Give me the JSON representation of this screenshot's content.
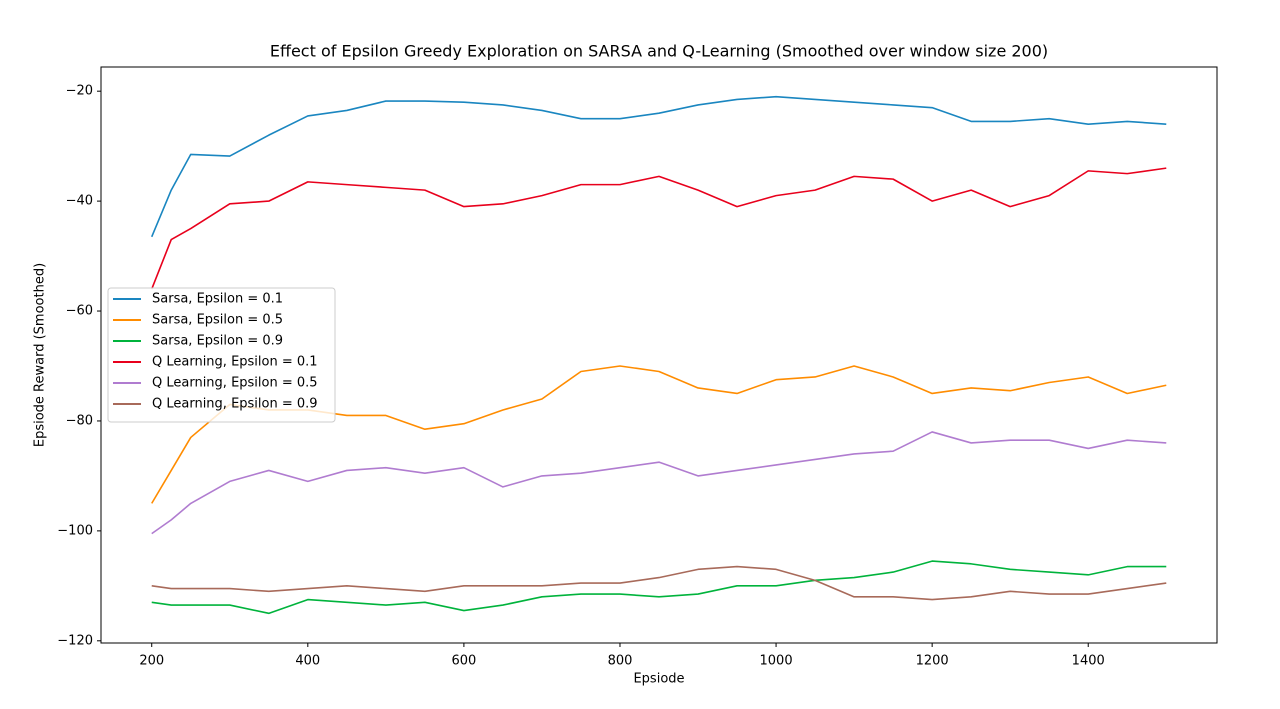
{
  "chart_data": {
    "type": "line",
    "title": "Effect of Epsilon Greedy Exploration on SARSA and Q-Learning (Smoothed over window size 200)",
    "x_label": "Epsiode",
    "y_label": "Epsiode Reward (Smoothed)",
    "x": [
      200,
      225,
      250,
      300,
      350,
      400,
      450,
      500,
      550,
      600,
      650,
      700,
      750,
      800,
      850,
      900,
      950,
      1000,
      1050,
      1100,
      1150,
      1200,
      1250,
      1300,
      1350,
      1400,
      1450,
      1500
    ],
    "series": [
      {
        "name": "Sarsa, Epsilon = 0.1",
        "color": "#1a86c0",
        "values": [
          -46.5,
          -38,
          -31.5,
          -31.8,
          -28,
          -24.5,
          -23.5,
          -21.8,
          -21.8,
          -22,
          -22.5,
          -23.5,
          -25,
          -25,
          -24,
          -22.5,
          -21.5,
          -21,
          -21.5,
          -22,
          -22.5,
          -23,
          -25.5,
          -25.5,
          -25,
          -26,
          -25.5,
          -26
        ]
      },
      {
        "name": "Sarsa, Epsilon = 0.5",
        "color": "#ff8c00",
        "values": [
          -95,
          -89,
          -83,
          -77,
          -78,
          -78,
          -79,
          -79,
          -81.5,
          -80.5,
          -78,
          -76,
          -71,
          -70,
          -71,
          -74,
          -75,
          -72.5,
          -72,
          -70,
          -72,
          -75,
          -74,
          -74.5,
          -73,
          -72,
          -75,
          -73.5
        ]
      },
      {
        "name": "Sarsa, Epsilon = 0.9",
        "color": "#00b33c",
        "values": [
          -113,
          -113.5,
          -113.5,
          -113.5,
          -115,
          -112.5,
          -113,
          -113.5,
          -113,
          -114.5,
          -113.5,
          -112,
          -111.5,
          -111.5,
          -112,
          -111.5,
          -110,
          -110,
          -109,
          -108.5,
          -107.5,
          -105.5,
          -106,
          -107,
          -107.5,
          -108,
          -106.5,
          -106.5
        ]
      },
      {
        "name": "Q Learning, Epsilon = 0.1",
        "color": "#e8001c",
        "values": [
          -56,
          -47,
          -45,
          -40.5,
          -40,
          -36.5,
          -37,
          -37.5,
          -38,
          -41,
          -40.5,
          -39,
          -37,
          -37,
          -35.5,
          -38,
          -41,
          -39,
          -38,
          -35.5,
          -36,
          -40,
          -38,
          -41,
          -39,
          -34.5,
          -35,
          -34
        ]
      },
      {
        "name": "Q Learning, Epsilon = 0.5",
        "color": "#b07cd0",
        "values": [
          -100.5,
          -98,
          -95,
          -91,
          -89,
          -91,
          -89,
          -88.5,
          -89.5,
          -88.5,
          -92,
          -90,
          -89.5,
          -88.5,
          -87.5,
          -90,
          -89,
          -88,
          -87,
          -86,
          -85.5,
          -82,
          -84,
          -83.5,
          -83.5,
          -85,
          -83.5,
          -84
        ]
      },
      {
        "name": "Q Learning, Epsilon = 0.9",
        "color": "#a86a5a",
        "values": [
          -110,
          -110.5,
          -110.5,
          -110.5,
          -111,
          -110.5,
          -110,
          -110.5,
          -111,
          -110,
          -110,
          -110,
          -109.5,
          -109.5,
          -108.5,
          -107,
          -106.5,
          -107,
          -109,
          -112,
          -112,
          -112.5,
          -112,
          -111,
          -111.5,
          -111.5,
          -110.5,
          -109.5
        ]
      }
    ],
    "xlim": [
      135,
      1565
    ],
    "ylim": [
      -120.4,
      -15.6
    ],
    "xticks": [
      200,
      400,
      600,
      800,
      1000,
      1200,
      1400
    ],
    "yticks": [
      {
        "value": -120,
        "label": "−120"
      },
      {
        "value": -100,
        "label": "−100"
      },
      {
        "value": -80,
        "label": "−80"
      },
      {
        "value": -60,
        "label": "−60"
      },
      {
        "value": -40,
        "label": "−40"
      },
      {
        "value": -20,
        "label": "−20"
      }
    ],
    "legend": "center left",
    "grid": false
  }
}
